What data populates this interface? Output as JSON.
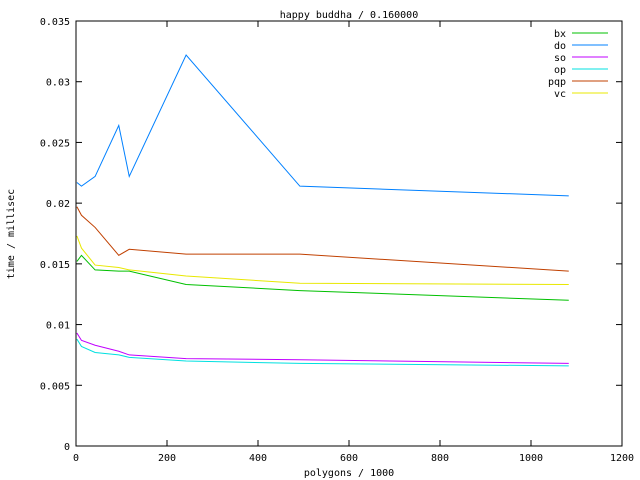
{
  "chart_data": {
    "type": "line",
    "title": "happy buddha / 0.160000",
    "xlabel": "polygons / 1000",
    "ylabel": "time / millisec",
    "xlim": [
      0,
      1200
    ],
    "ylim": [
      0,
      0.035
    ],
    "xticks": [
      "0",
      "200",
      "400",
      "600",
      "800",
      "1000",
      "1200"
    ],
    "yticks": [
      "0",
      "0.005",
      "0.01",
      "0.015",
      "0.02",
      "0.025",
      "0.03",
      "0.035"
    ],
    "grid": false,
    "legend": "top-right",
    "x": [
      2,
      12,
      42,
      94,
      117,
      242,
      492,
      1083
    ],
    "series": [
      {
        "name": "bx",
        "color": "#00c000",
        "values": [
          0.0152,
          0.0157,
          0.0145,
          0.0144,
          0.0144,
          0.0133,
          0.0128,
          0.012
        ]
      },
      {
        "name": "do",
        "color": "#0080ff",
        "values": [
          0.0217,
          0.0214,
          0.0222,
          0.0264,
          0.0222,
          0.0322,
          0.0214,
          0.0206
        ]
      },
      {
        "name": "so",
        "color": "#c000ff",
        "values": [
          0.0093,
          0.0087,
          0.0083,
          0.0078,
          0.0075,
          0.0072,
          0.0071,
          0.0068
        ]
      },
      {
        "name": "op",
        "color": "#00e0e0",
        "values": [
          0.0088,
          0.0082,
          0.0077,
          0.0075,
          0.0073,
          0.007,
          0.0068,
          0.0066
        ]
      },
      {
        "name": "pqp",
        "color": "#c04000",
        "values": [
          0.0197,
          0.019,
          0.018,
          0.0157,
          0.0162,
          0.0158,
          0.0158,
          0.0144
        ]
      },
      {
        "name": "vc",
        "color": "#e8e800",
        "values": [
          0.0173,
          0.0163,
          0.0149,
          0.0147,
          0.0145,
          0.014,
          0.0134,
          0.0133
        ]
      }
    ]
  }
}
